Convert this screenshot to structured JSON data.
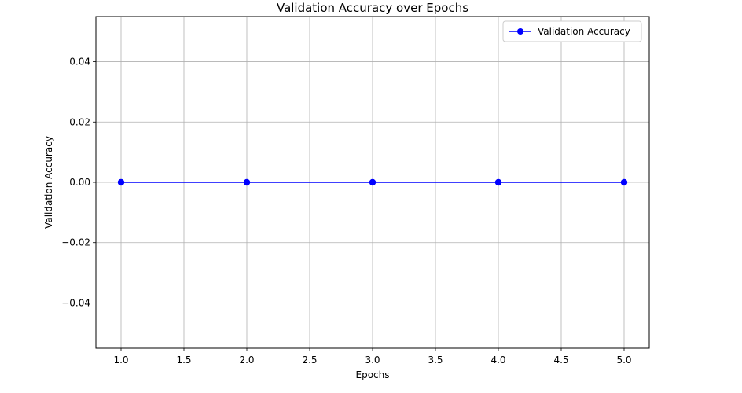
{
  "chart_data": {
    "type": "line",
    "title": "Validation Accuracy over Epochs",
    "xlabel": "Epochs",
    "ylabel": "Validation Accuracy",
    "xlim": [
      0.8,
      5.2
    ],
    "ylim": [
      -0.055,
      0.055
    ],
    "x_ticks": [
      1.0,
      1.5,
      2.0,
      2.5,
      3.0,
      3.5,
      4.0,
      4.5,
      5.0
    ],
    "x_tick_labels": [
      "1.0",
      "1.5",
      "2.0",
      "2.5",
      "3.0",
      "3.5",
      "4.0",
      "4.5",
      "5.0"
    ],
    "y_ticks": [
      -0.04,
      -0.02,
      0.0,
      0.02,
      0.04
    ],
    "y_tick_labels": [
      "−0.04",
      "−0.02",
      "0.00",
      "0.02",
      "0.04"
    ],
    "grid": true,
    "legend_position": "top-right",
    "series": [
      {
        "name": "Validation Accuracy",
        "color": "#0000ff",
        "marker": "circle",
        "x": [
          1,
          2,
          3,
          4,
          5
        ],
        "y": [
          0,
          0,
          0,
          0,
          0
        ]
      }
    ]
  }
}
